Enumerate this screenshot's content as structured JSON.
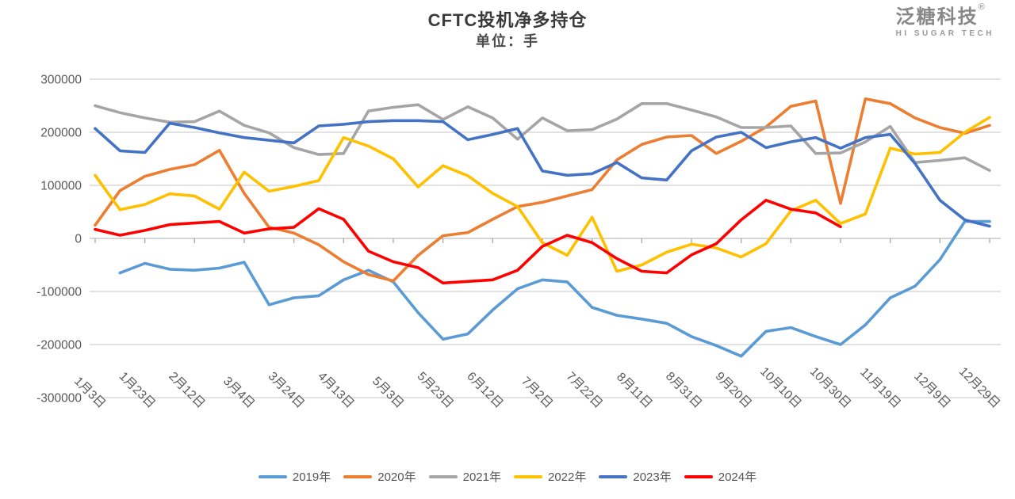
{
  "header": {
    "title": "CFTC投机净多持仓",
    "subtitle": "单位：手"
  },
  "logo": {
    "name": "泛糖科技",
    "registered_mark": "®",
    "tagline": "HI SUGAR TECH"
  },
  "colors": {
    "grid": "#d9d9d9",
    "zero_axis": "#c9c9c9",
    "tick": "#a6a6a6",
    "axis_text": "#595959"
  },
  "chart_data": {
    "type": "line",
    "title": "CFTC投机净多持仓",
    "unit_label": "单位：手",
    "grid": "horizontal",
    "legend_position": "bottom",
    "ylim": [
      -300000,
      300000
    ],
    "y_ticks": [
      300000,
      200000,
      100000,
      0,
      -100000,
      -200000,
      -300000
    ],
    "x_tick_labels": [
      "1月3日",
      "1月23日",
      "2月12日",
      "3月4日",
      "3月24日",
      "4月13日",
      "5月3日",
      "5月23日",
      "6月12日",
      "7月2日",
      "7月22日",
      "8月11日",
      "8月31日",
      "9月20日",
      "10月10日",
      "10月30日",
      "11月19日",
      "12月9日",
      "12月29日"
    ],
    "points_per_series": 37,
    "samples_per_tick": 2,
    "series": [
      {
        "name": "2019年",
        "color": "#5B9BD5",
        "values": [
          null,
          -65000,
          -47000,
          -58000,
          -60000,
          -56000,
          -45000,
          -125000,
          -112000,
          -108000,
          -78000,
          -60000,
          -82000,
          -140000,
          -190000,
          -180000,
          -135000,
          -95000,
          -78000,
          -82000,
          -130000,
          -145000,
          -152000,
          -160000,
          -185000,
          -202000,
          -222000,
          -175000,
          -168000,
          -185000,
          -200000,
          -163000,
          -112000,
          -90000,
          -40000,
          32000,
          32000
        ]
      },
      {
        "name": "2020年",
        "color": "#ED7D31",
        "values": [
          25000,
          90000,
          117000,
          130000,
          139000,
          166000,
          85000,
          21000,
          10000,
          -12000,
          -44000,
          -68000,
          -80000,
          -32000,
          5000,
          11000,
          36000,
          60000,
          68000,
          80000,
          92000,
          148000,
          177000,
          191000,
          194000,
          160000,
          183000,
          210000,
          249000,
          259000,
          66000,
          263000,
          254000,
          227000,
          209000,
          198000,
          213000
        ]
      },
      {
        "name": "2021年",
        "color": "#A5A5A5",
        "values": [
          250000,
          237000,
          227000,
          219000,
          220000,
          240000,
          213000,
          199000,
          171000,
          158000,
          160000,
          240000,
          247000,
          252000,
          224000,
          248000,
          227000,
          187000,
          227000,
          203000,
          205000,
          225000,
          254000,
          254000,
          242000,
          229000,
          209000,
          209000,
          212000,
          160000,
          161000,
          182000,
          211000,
          143000,
          147000,
          152000,
          128000
        ]
      },
      {
        "name": "2022年",
        "color": "#FFC000",
        "values": [
          119000,
          54000,
          64000,
          84000,
          80000,
          55000,
          125000,
          89000,
          98000,
          109000,
          190000,
          174000,
          150000,
          97000,
          137000,
          118000,
          85000,
          60000,
          -8000,
          -32000,
          40000,
          -62000,
          -50000,
          -26000,
          -11000,
          -18000,
          -35000,
          -10000,
          52000,
          72000,
          28000,
          46000,
          170000,
          159000,
          162000,
          200000,
          228000
        ]
      },
      {
        "name": "2023年",
        "color": "#4472C4",
        "values": [
          207000,
          165000,
          162000,
          217000,
          209000,
          199000,
          190000,
          185000,
          180000,
          212000,
          215000,
          220000,
          222000,
          222000,
          220000,
          186000,
          196000,
          207000,
          127000,
          119000,
          122000,
          143000,
          114000,
          110000,
          165000,
          191000,
          200000,
          171000,
          182000,
          190000,
          170000,
          190000,
          196000,
          141000,
          72000,
          35000,
          23000
        ]
      },
      {
        "name": "2024年",
        "color": "#FF0000",
        "values": [
          17000,
          6000,
          15000,
          26000,
          29000,
          32000,
          10000,
          18000,
          21000,
          56000,
          36000,
          -24000,
          -44000,
          -55000,
          -84000,
          -81000,
          -78000,
          -60000,
          -15000,
          6000,
          -8000,
          -38000,
          -62000,
          -65000,
          -31000,
          -10000,
          35000,
          72000,
          55000,
          48000,
          22000,
          null,
          null,
          null,
          null,
          null,
          null
        ]
      }
    ]
  }
}
